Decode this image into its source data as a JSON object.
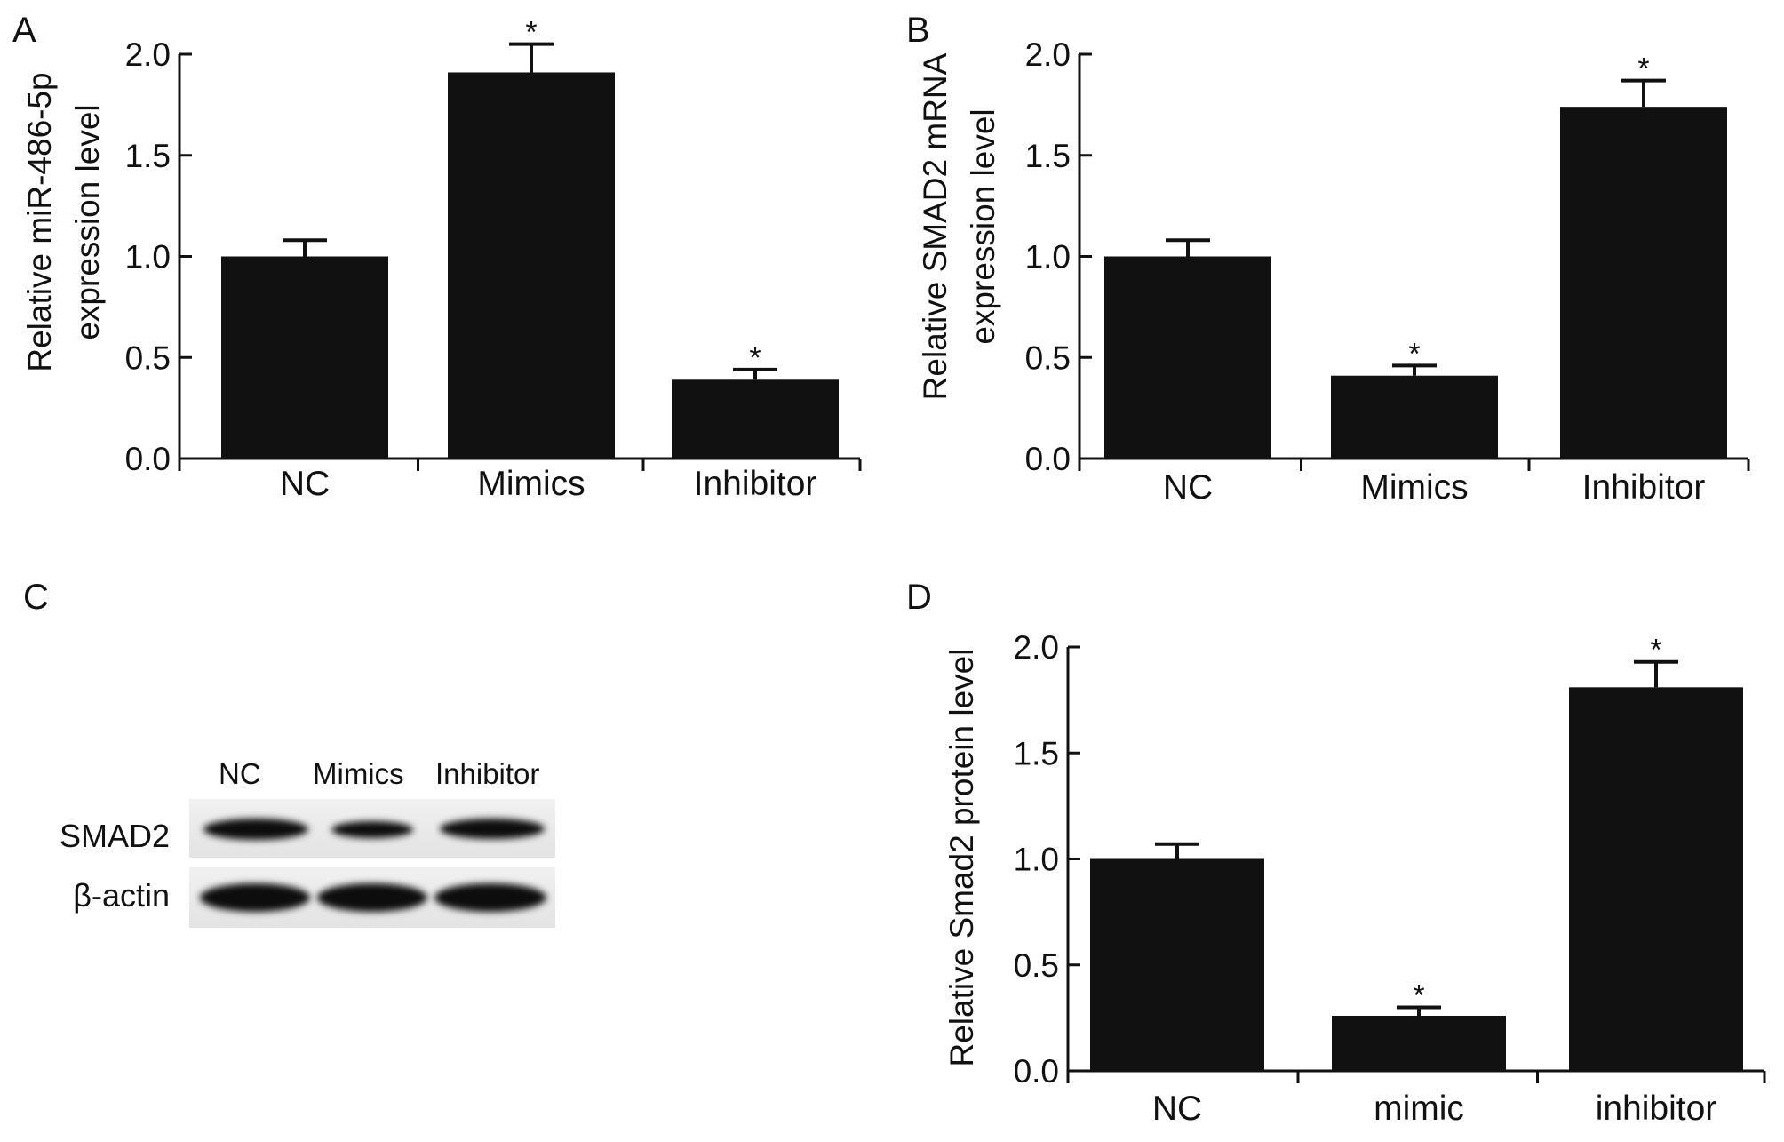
{
  "panels": {
    "A": "A",
    "B": "B",
    "C": "C",
    "D": "D"
  },
  "blot": {
    "lanes": [
      "NC",
      "Mimics",
      "Inhibitor"
    ],
    "rows": [
      {
        "label": "SMAD2",
        "intensity": [
          1.0,
          0.75,
          0.95
        ]
      },
      {
        "label": "β-actin",
        "intensity": [
          1.0,
          1.0,
          1.0
        ]
      }
    ]
  },
  "chart_data": [
    {
      "id": "A",
      "type": "bar",
      "categories": [
        "NC",
        "Mimics",
        "Inhibitor"
      ],
      "values": [
        1.0,
        1.91,
        0.39
      ],
      "errors": [
        0.08,
        0.14,
        0.05
      ],
      "significance": [
        "",
        "*",
        "*"
      ],
      "ylabel": [
        "Relative miR-486-5p",
        "expression level"
      ],
      "ylim": [
        0,
        2.0
      ],
      "yticks": [
        "0.0",
        "0.5",
        "1.0",
        "1.5",
        "2.0"
      ],
      "bar_color": "#111111"
    },
    {
      "id": "B",
      "type": "bar",
      "categories": [
        "NC",
        "Mimics",
        "Inhibitor"
      ],
      "values": [
        1.0,
        0.41,
        1.74
      ],
      "errors": [
        0.08,
        0.05,
        0.13
      ],
      "significance": [
        "",
        "*",
        "*"
      ],
      "ylabel": [
        "Relative SMAD2 mRNA",
        "expression level"
      ],
      "ylim": [
        0,
        2.0
      ],
      "yticks": [
        "0.0",
        "0.5",
        "1.0",
        "1.5",
        "2.0"
      ],
      "bar_color": "#111111"
    },
    {
      "id": "D",
      "type": "bar",
      "categories": [
        "NC",
        "mimic",
        "inhibitor"
      ],
      "values": [
        1.0,
        0.26,
        1.81
      ],
      "errors": [
        0.07,
        0.04,
        0.12
      ],
      "significance": [
        "",
        "*",
        "*"
      ],
      "ylabel": [
        "Relative Smad2 protein level"
      ],
      "ylim": [
        0,
        2.0
      ],
      "yticks": [
        "0.0",
        "0.5",
        "1.0",
        "1.5",
        "2.0"
      ],
      "bar_color": "#111111"
    }
  ]
}
